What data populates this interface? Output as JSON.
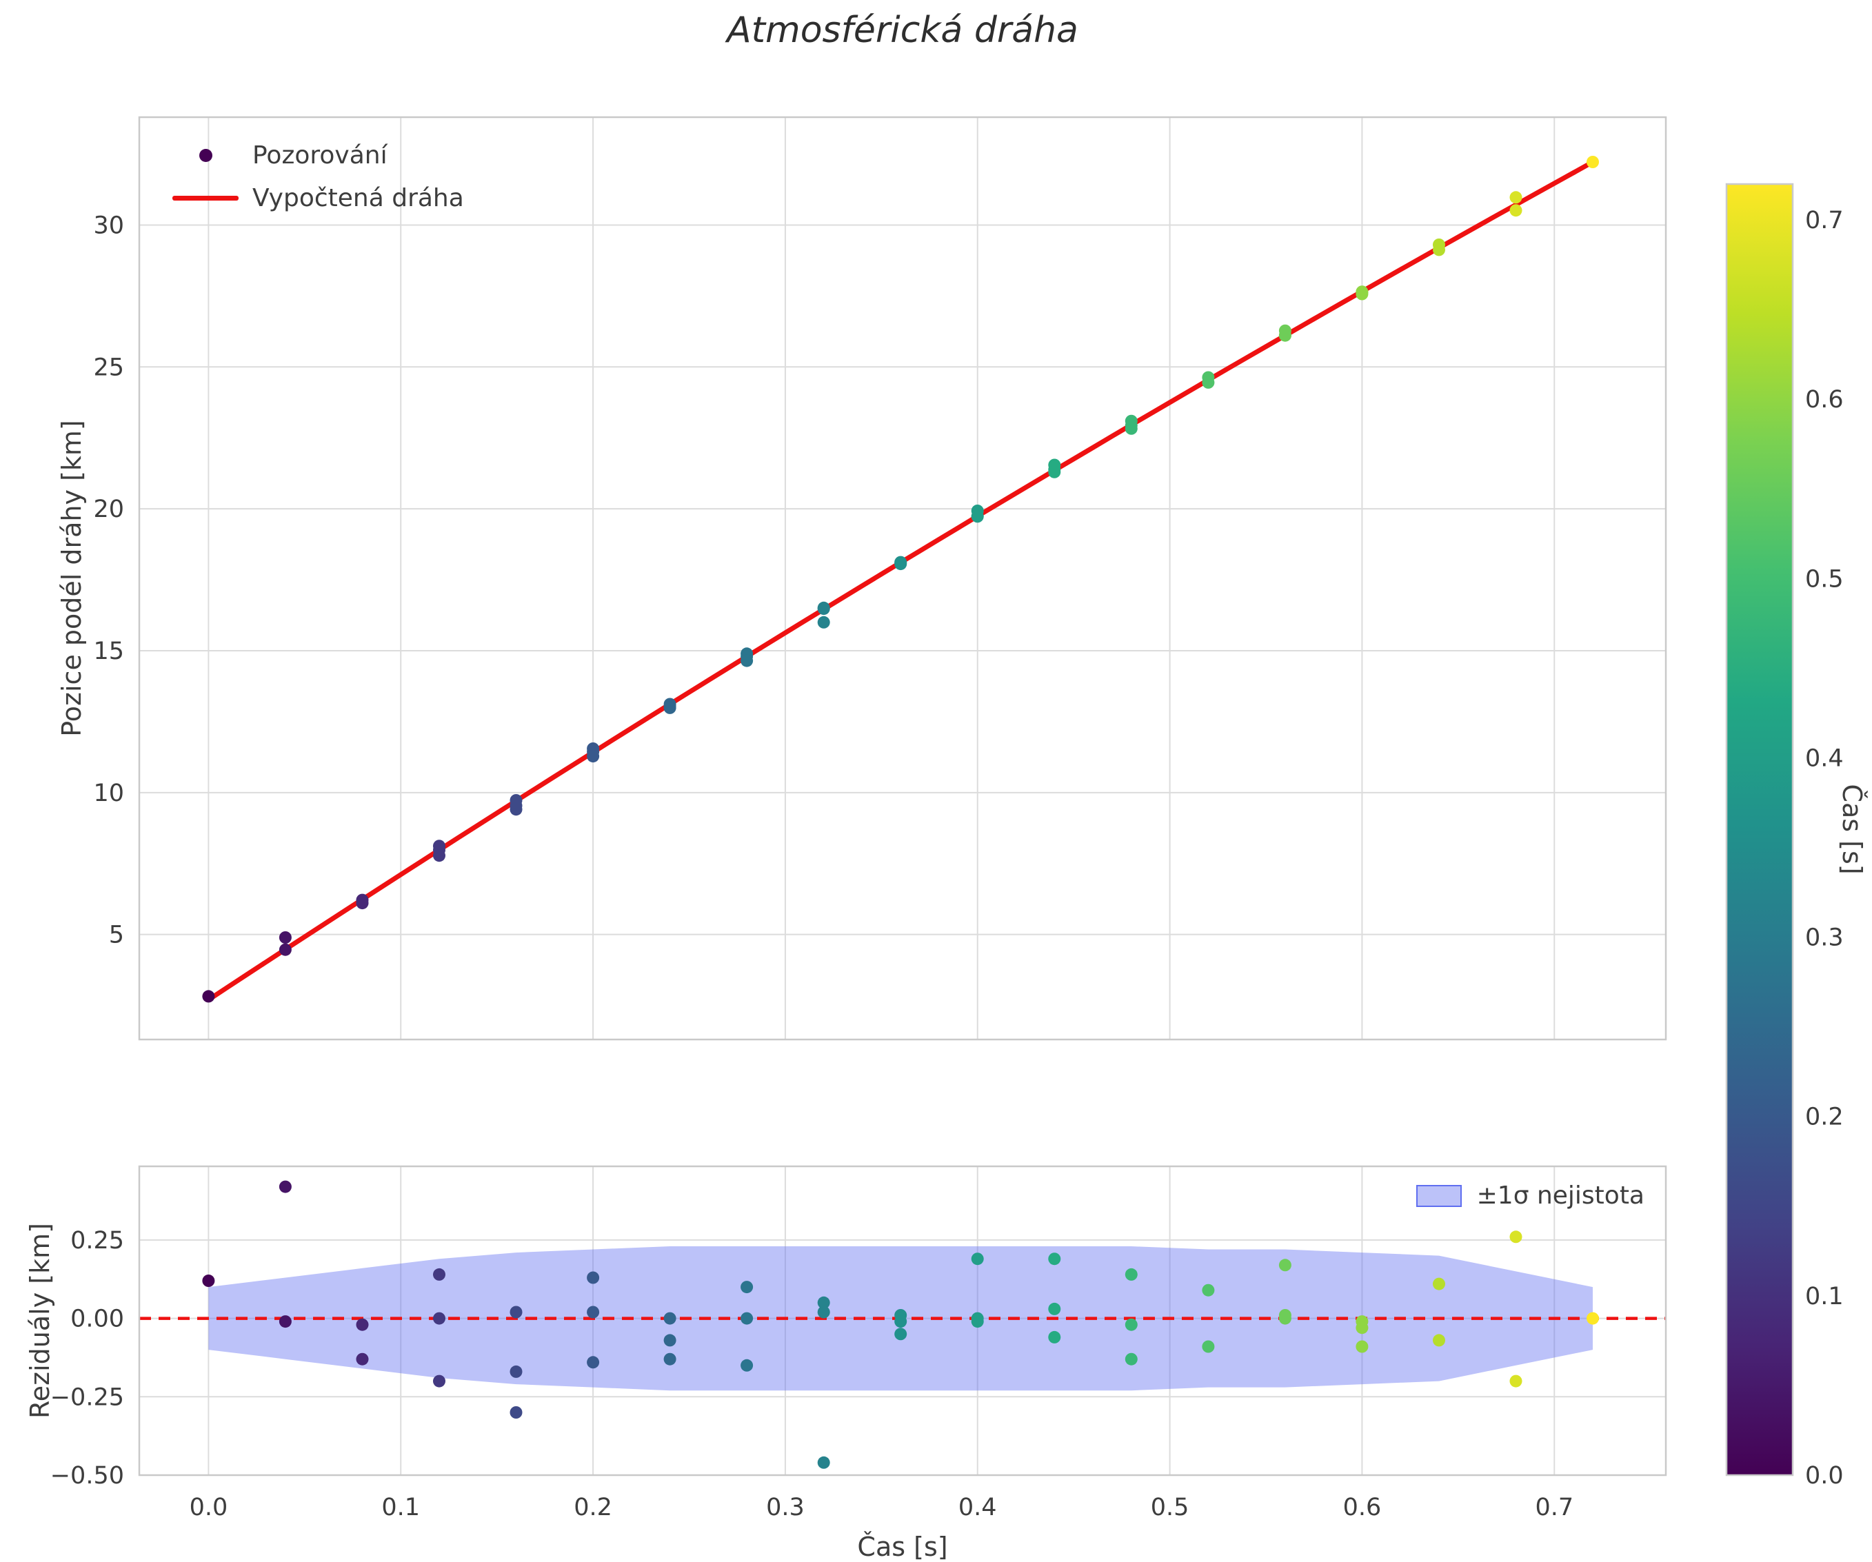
{
  "page": {
    "title": "Atmosférická dráha"
  },
  "colors": {
    "fit_line": "#ee1111",
    "zero_line": "#ee1111",
    "band_fill": "#5f6ef0",
    "scatter_first": "#440154",
    "grid": "#dcdcdc",
    "spine": "#c9c9c9",
    "text": "#3d3d3d",
    "title_text": "#2e2e2e"
  },
  "chart_data": {
    "type": "scatter",
    "title": "Atmosférická dráha",
    "colormap": "viridis",
    "main_plot": {
      "ylabel": "Pozice podél dráhy [km]",
      "legend": {
        "observations": "Pozorování",
        "fit": "Vypočtená dráha"
      },
      "xlim": [
        -0.036,
        0.758
      ],
      "ylim": [
        1.3,
        33.8
      ],
      "yticks": [
        5,
        10,
        15,
        20,
        25,
        30
      ],
      "xticks": [
        0,
        0.1,
        0.2,
        0.3,
        0.4,
        0.5,
        0.6,
        0.7
      ],
      "grid": true,
      "fit_model": {
        "intercept": 2.7,
        "slope": 44.6,
        "quad": -5.0,
        "t_start": 0.0,
        "t_end": 0.72
      }
    },
    "residual_plot": {
      "ylabel": "Reziduály [km]",
      "xlabel": "Čas [s]",
      "legend": "±1σ nejistota",
      "xlim": [
        -0.036,
        0.758
      ],
      "ylim": [
        -0.5,
        0.485
      ],
      "yticks": [
        -0.5,
        -0.25,
        0,
        0.25
      ],
      "ytick_labels": [
        "−0.50",
        "−0.25",
        "0.00",
        "0.25"
      ],
      "xtick_labels": [
        "0.0",
        "0.1",
        "0.2",
        "0.3",
        "0.4",
        "0.5",
        "0.6",
        "0.7"
      ],
      "band_t": [
        0,
        0.04,
        0.08,
        0.12,
        0.16,
        0.2,
        0.24,
        0.28,
        0.32,
        0.36,
        0.4,
        0.44,
        0.48,
        0.52,
        0.56,
        0.6,
        0.64,
        0.68,
        0.72
      ],
      "band_sigma": [
        0.1,
        0.13,
        0.16,
        0.19,
        0.21,
        0.22,
        0.23,
        0.23,
        0.23,
        0.23,
        0.23,
        0.23,
        0.23,
        0.22,
        0.22,
        0.21,
        0.2,
        0.15,
        0.1
      ]
    },
    "colorbar": {
      "label": "Čas [s]",
      "vmin": 0,
      "vmax": 0.72,
      "ticks": [
        0,
        0.1,
        0.2,
        0.3,
        0.4,
        0.5,
        0.6,
        0.7
      ],
      "tick_labels": [
        "0.0",
        "0.1",
        "0.2",
        "0.3",
        "0.4",
        "0.5",
        "0.6",
        "0.7"
      ]
    },
    "observations": {
      "t": [
        0.0,
        0.04,
        0.04,
        0.08,
        0.08,
        0.12,
        0.12,
        0.12,
        0.16,
        0.16,
        0.16,
        0.2,
        0.2,
        0.2,
        0.24,
        0.24,
        0.24,
        0.28,
        0.28,
        0.28,
        0.32,
        0.32,
        0.32,
        0.36,
        0.36,
        0.36,
        0.4,
        0.4,
        0.4,
        0.44,
        0.44,
        0.44,
        0.48,
        0.48,
        0.48,
        0.52,
        0.52,
        0.56,
        0.56,
        0.56,
        0.6,
        0.6,
        0.6,
        0.64,
        0.64,
        0.68,
        0.68,
        0.72
      ],
      "residual_km": [
        0.12,
        0.42,
        -0.01,
        -0.02,
        -0.13,
        0.14,
        0.0,
        -0.2,
        0.02,
        -0.17,
        -0.3,
        0.13,
        0.02,
        -0.14,
        0.0,
        -0.07,
        -0.13,
        0.1,
        0.0,
        -0.15,
        0.05,
        0.02,
        -0.46,
        0.01,
        -0.01,
        -0.05,
        0.19,
        0.0,
        -0.01,
        0.19,
        0.03,
        -0.06,
        0.14,
        -0.02,
        -0.13,
        0.09,
        -0.09,
        0.17,
        0.01,
        0.0,
        -0.01,
        -0.03,
        -0.09,
        0.11,
        -0.07,
        0.26,
        -0.2,
        0.0
      ]
    }
  }
}
